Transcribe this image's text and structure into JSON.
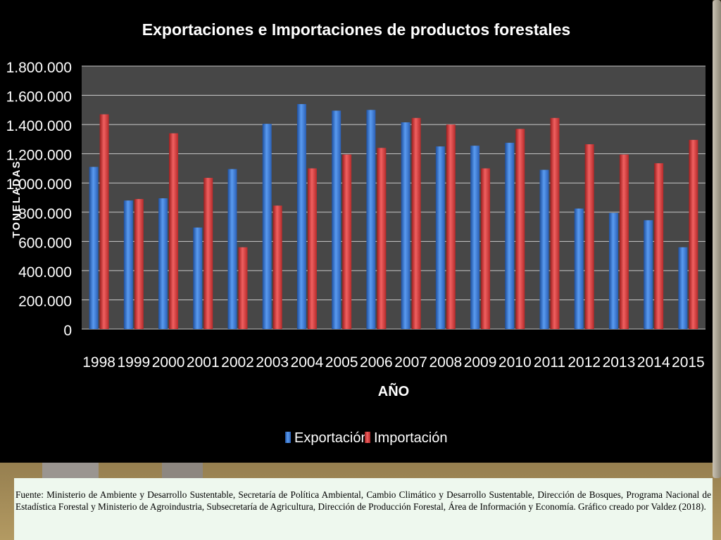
{
  "colors": {
    "panel": "#000000",
    "plot_area": "#474747",
    "grid": "#c8c8c8",
    "export_series": "#3f7fd6",
    "import_series": "#d83a3a",
    "text": "#ffffff"
  },
  "chart_data": {
    "type": "bar",
    "title": "Exportaciones e Importaciones de productos forestales",
    "xlabel": "AÑO",
    "ylabel": "TONELADAS",
    "ylim": [
      0,
      1800000
    ],
    "yticks": [
      0,
      200000,
      400000,
      600000,
      800000,
      1000000,
      1200000,
      1400000,
      1600000,
      1800000
    ],
    "ytick_labels": [
      "0",
      "200.000",
      "400.000",
      "600.000",
      "800.000",
      "1.000.000",
      "1.200.000",
      "1.400.000",
      "1.600.000",
      "1.800.000"
    ],
    "grid": true,
    "legend_position": "bottom-center",
    "categories": [
      "1998",
      "1999",
      "2000",
      "2001",
      "2002",
      "2003",
      "2004",
      "2005",
      "2006",
      "2007",
      "2008",
      "2009",
      "2010",
      "2011",
      "2012",
      "2013",
      "2014",
      "2015"
    ],
    "series": [
      {
        "name": "Exportación",
        "values": [
          1110000,
          880000,
          895000,
          695000,
          1095000,
          1405000,
          1540000,
          1495000,
          1500000,
          1415000,
          1250000,
          1255000,
          1275000,
          1090000,
          825000,
          795000,
          745000,
          560000
        ]
      },
      {
        "name": "Importación",
        "values": [
          1470000,
          890000,
          1340000,
          1035000,
          560000,
          845000,
          1100000,
          1195000,
          1240000,
          1445000,
          1400000,
          1100000,
          1370000,
          1445000,
          1265000,
          1195000,
          1135000,
          1295000
        ]
      }
    ]
  },
  "source_note": "Fuente: Ministerio de Ambiente y Desarrollo Sustentable, Secretaría de Política Ambiental, Cambio Climático y Desarrollo Sustentable, Dirección de Bosques, Programa Nacional de Estadística Forestal y Ministerio de Agroindustria, Subsecretaría de Agricultura, Dirección de Producción Forestal,  Área de Información y Economía. Gráfico creado por Valdez (2018)."
}
